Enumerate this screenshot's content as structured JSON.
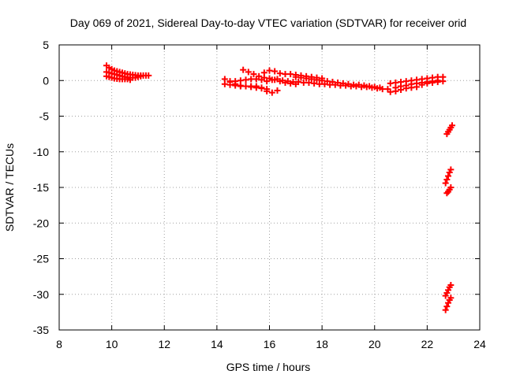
{
  "chart_data": {
    "type": "scatter",
    "title": "Day 069 of 2021, Sidereal Day-to-day VTEC variation (SDTVAR) for receiver orid",
    "xlabel": "GPS time / hours",
    "ylabel": "SDTVAR / TECUs",
    "xlim": [
      8,
      24
    ],
    "ylim": [
      -35,
      5
    ],
    "xticks": [
      8,
      10,
      12,
      14,
      16,
      18,
      20,
      22,
      24
    ],
    "yticks": [
      5,
      0,
      -5,
      -10,
      -15,
      -20,
      -25,
      -30,
      -35
    ],
    "grid": true,
    "marker_color": "#ff0000",
    "point_marker": "plus",
    "series": [
      {
        "values": [
          [
            9.8,
            2.1
          ],
          [
            9.9,
            1.8
          ],
          [
            10.0,
            1.6
          ],
          [
            10.1,
            1.4
          ],
          [
            10.2,
            1.3
          ],
          [
            10.3,
            1.2
          ],
          [
            10.4,
            1.1
          ],
          [
            10.5,
            1.0
          ],
          [
            10.6,
            0.9
          ],
          [
            10.7,
            0.85
          ],
          [
            10.8,
            0.8
          ],
          [
            10.9,
            0.75
          ],
          [
            11.0,
            0.7
          ],
          [
            11.1,
            0.7
          ],
          [
            11.2,
            0.7
          ],
          [
            11.3,
            0.7
          ],
          [
            11.4,
            0.7
          ],
          [
            9.8,
            1.2
          ],
          [
            9.9,
            1.1
          ],
          [
            10.0,
            1.0
          ],
          [
            10.1,
            0.9
          ],
          [
            10.2,
            0.8
          ],
          [
            10.3,
            0.7
          ],
          [
            10.4,
            0.6
          ],
          [
            10.5,
            0.5
          ],
          [
            10.6,
            0.45
          ],
          [
            10.7,
            0.4
          ],
          [
            10.8,
            0.4
          ],
          [
            10.9,
            0.4
          ],
          [
            11.0,
            0.5
          ],
          [
            11.1,
            0.6
          ],
          [
            9.8,
            0.6
          ],
          [
            9.9,
            0.5
          ],
          [
            10.0,
            0.4
          ],
          [
            10.1,
            0.3
          ],
          [
            10.2,
            0.25
          ],
          [
            10.3,
            0.2
          ],
          [
            10.4,
            0.2
          ],
          [
            10.5,
            0.2
          ],
          [
            10.6,
            0.2
          ],
          [
            10.7,
            0.1
          ],
          [
            14.3,
            0.2
          ],
          [
            14.5,
            -0.2
          ],
          [
            14.7,
            -0.5
          ],
          [
            14.9,
            -0.7
          ],
          [
            15.1,
            -0.8
          ],
          [
            15.3,
            -0.8
          ],
          [
            15.5,
            -0.8
          ],
          [
            15.7,
            -1.0
          ],
          [
            15.9,
            -1.5
          ],
          [
            16.1,
            -1.7
          ],
          [
            16.3,
            -1.4
          ],
          [
            14.3,
            -0.5
          ],
          [
            14.5,
            -0.6
          ],
          [
            14.7,
            -0.7
          ],
          [
            14.9,
            -0.8
          ],
          [
            15.1,
            -0.8
          ],
          [
            15.3,
            -0.9
          ],
          [
            15.5,
            -1.0
          ],
          [
            15.7,
            -1.1
          ],
          [
            15.9,
            -1.2
          ],
          [
            15.0,
            1.5
          ],
          [
            15.2,
            1.2
          ],
          [
            15.4,
            0.9
          ],
          [
            15.6,
            0.6
          ],
          [
            15.8,
            0.4
          ],
          [
            16.0,
            0.3
          ],
          [
            16.2,
            0.1
          ],
          [
            16.4,
            -0.1
          ],
          [
            16.6,
            -0.3
          ],
          [
            16.8,
            -0.4
          ],
          [
            17.0,
            -0.5
          ],
          [
            14.5,
            -0.1
          ],
          [
            14.7,
            -0.1
          ],
          [
            14.9,
            0.0
          ],
          [
            15.1,
            0.1
          ],
          [
            15.3,
            0.2
          ],
          [
            15.5,
            0.2
          ],
          [
            15.7,
            0.1
          ],
          [
            15.9,
            -0.1
          ],
          [
            16.1,
            0.1
          ],
          [
            15.8,
            1.1
          ],
          [
            16.0,
            1.4
          ],
          [
            16.2,
            1.3
          ],
          [
            16.4,
            1.0
          ],
          [
            16.6,
            0.9
          ],
          [
            16.8,
            0.9
          ],
          [
            17.0,
            0.8
          ],
          [
            17.2,
            0.7
          ],
          [
            17.4,
            0.6
          ],
          [
            17.6,
            0.5
          ],
          [
            17.8,
            0.4
          ],
          [
            18.0,
            0.3
          ],
          [
            16.3,
            0.2
          ],
          [
            16.5,
            0.0
          ],
          [
            16.7,
            -0.1
          ],
          [
            16.9,
            -0.2
          ],
          [
            17.1,
            -0.2
          ],
          [
            17.3,
            -0.3
          ],
          [
            17.5,
            -0.3
          ],
          [
            17.7,
            -0.4
          ],
          [
            17.9,
            -0.5
          ],
          [
            18.1,
            -0.5
          ],
          [
            18.3,
            -0.6
          ],
          [
            18.5,
            -0.6
          ],
          [
            18.7,
            -0.7
          ],
          [
            18.9,
            -0.7
          ],
          [
            19.1,
            -0.8
          ],
          [
            19.3,
            -0.8
          ],
          [
            19.5,
            -0.9
          ],
          [
            19.7,
            -0.9
          ],
          [
            19.9,
            -1.0
          ],
          [
            20.1,
            -1.1
          ],
          [
            20.3,
            -1.2
          ],
          [
            20.5,
            -1.2
          ],
          [
            17.0,
            0.5
          ],
          [
            17.2,
            0.4
          ],
          [
            17.4,
            0.3
          ],
          [
            17.6,
            0.2
          ],
          [
            17.8,
            0.1
          ],
          [
            18.0,
            0.0
          ],
          [
            18.2,
            -0.1
          ],
          [
            18.4,
            -0.2
          ],
          [
            18.6,
            -0.3
          ],
          [
            18.8,
            -0.4
          ],
          [
            19.0,
            -0.5
          ],
          [
            19.2,
            -0.6
          ],
          [
            19.4,
            -0.6
          ],
          [
            19.6,
            -0.7
          ],
          [
            19.8,
            -0.8
          ],
          [
            20.0,
            -0.9
          ],
          [
            20.2,
            -1.0
          ],
          [
            20.6,
            -1.6
          ],
          [
            20.8,
            -1.5
          ],
          [
            21.0,
            -1.3
          ],
          [
            21.2,
            -1.1
          ],
          [
            21.4,
            -1.0
          ],
          [
            21.6,
            -0.9
          ],
          [
            21.8,
            -0.6
          ],
          [
            22.0,
            -0.4
          ],
          [
            22.2,
            -0.3
          ],
          [
            22.4,
            -0.2
          ],
          [
            22.6,
            -0.1
          ],
          [
            20.6,
            -0.4
          ],
          [
            20.8,
            -0.3
          ],
          [
            21.0,
            -0.2
          ],
          [
            21.2,
            -0.1
          ],
          [
            21.4,
            0.0
          ],
          [
            21.6,
            0.1
          ],
          [
            21.8,
            0.2
          ],
          [
            22.0,
            0.3
          ],
          [
            22.2,
            0.4
          ],
          [
            22.4,
            0.5
          ],
          [
            22.6,
            0.5
          ],
          [
            20.8,
            -1.0
          ],
          [
            21.0,
            -0.8
          ],
          [
            21.2,
            -0.7
          ],
          [
            21.4,
            -0.5
          ],
          [
            21.6,
            -0.4
          ],
          [
            21.8,
            -0.3
          ],
          [
            22.0,
            -0.2
          ],
          [
            22.2,
            -0.1
          ],
          [
            22.4,
            0.0
          ],
          [
            22.75,
            -7.5
          ],
          [
            22.8,
            -7.2
          ],
          [
            22.85,
            -6.9
          ],
          [
            22.9,
            -6.6
          ],
          [
            22.95,
            -6.3
          ],
          [
            22.7,
            -14.4
          ],
          [
            22.75,
            -13.9
          ],
          [
            22.8,
            -13.4
          ],
          [
            22.85,
            -12.9
          ],
          [
            22.9,
            -12.5
          ],
          [
            22.75,
            -15.8
          ],
          [
            22.8,
            -15.6
          ],
          [
            22.85,
            -15.3
          ],
          [
            22.9,
            -15.0
          ],
          [
            22.7,
            -30.2
          ],
          [
            22.75,
            -29.8
          ],
          [
            22.8,
            -29.4
          ],
          [
            22.85,
            -29.0
          ],
          [
            22.9,
            -28.7
          ],
          [
            22.7,
            -32.2
          ],
          [
            22.75,
            -31.7
          ],
          [
            22.8,
            -31.2
          ],
          [
            22.85,
            -30.8
          ],
          [
            22.9,
            -30.5
          ]
        ]
      }
    ]
  }
}
